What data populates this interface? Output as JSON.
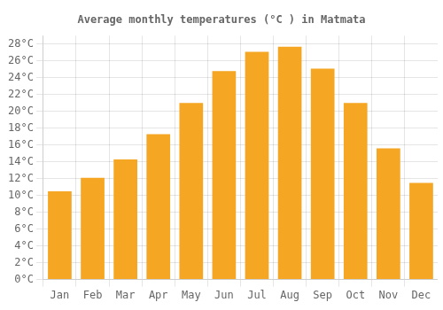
{
  "chart_data": {
    "type": "bar",
    "title": "Average monthly temperatures (°C ) in Matmata",
    "categories": [
      "Jan",
      "Feb",
      "Mar",
      "Apr",
      "May",
      "Jun",
      "Jul",
      "Aug",
      "Sep",
      "Oct",
      "Nov",
      "Dec"
    ],
    "values": [
      10.5,
      12.1,
      14.3,
      17.3,
      21.0,
      24.8,
      27.1,
      27.7,
      25.1,
      21.0,
      15.6,
      11.5
    ],
    "color": "#F5A623",
    "ylim": [
      0,
      29
    ],
    "yticks": [
      {
        "value": 0,
        "label": "0°C"
      },
      {
        "value": 2,
        "label": "2°C"
      },
      {
        "value": 4,
        "label": "4°C"
      },
      {
        "value": 6,
        "label": "6°C"
      },
      {
        "value": 8,
        "label": "8°C"
      },
      {
        "value": 10,
        "label": "10°C"
      },
      {
        "value": 12,
        "label": "12°C"
      },
      {
        "value": 14,
        "label": "14°C"
      },
      {
        "value": 16,
        "label": "16°C"
      },
      {
        "value": 18,
        "label": "18°C"
      },
      {
        "value": 20,
        "label": "20°C"
      },
      {
        "value": 22,
        "label": "22°C"
      },
      {
        "value": 24,
        "label": "24°C"
      },
      {
        "value": 26,
        "label": "26°C"
      },
      {
        "value": 28,
        "label": "28°C"
      }
    ],
    "grid": true
  }
}
